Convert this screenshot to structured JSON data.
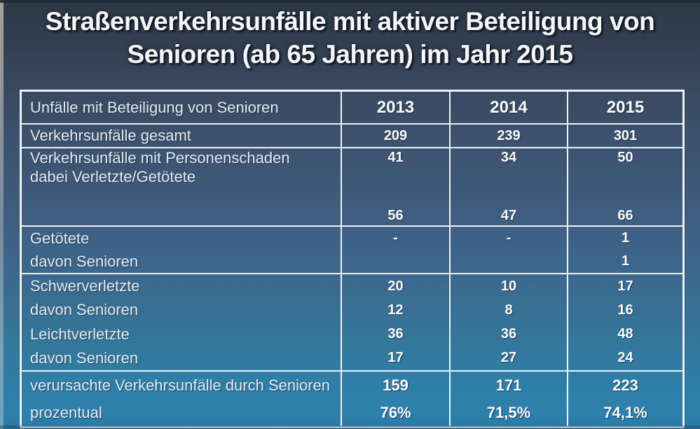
{
  "title": {
    "line1": "Straßenverkehrsunfälle mit aktiver Beteiligung von",
    "line2": "Senioren (ab 65 Jahren) im Jahr 2015"
  },
  "table": {
    "header": {
      "label": "Unfälle mit Beteiligung von Senioren",
      "years": [
        "2013",
        "2014",
        "2015"
      ]
    },
    "blocks": [
      {
        "labels": [
          "Verkehrsunfälle gesamt"
        ],
        "columns": [
          [
            "209"
          ],
          [
            "239"
          ],
          [
            "301"
          ]
        ]
      },
      {
        "labels": [
          "Verkehrsunfälle mit Personenschaden",
          "dabei Verletzte/Getötete",
          "",
          ""
        ],
        "columns": [
          [
            "41",
            "",
            "",
            "56"
          ],
          [
            "34",
            "",
            "",
            "47"
          ],
          [
            "50",
            "",
            "",
            "66"
          ]
        ]
      },
      {
        "labels": [
          "Getötete",
          "davon Senioren"
        ],
        "columns": [
          [
            "-",
            ""
          ],
          [
            "-",
            ""
          ],
          [
            "1",
            "1"
          ]
        ]
      },
      {
        "labels": [
          "Schwerverletzte",
          "davon Senioren",
          "Leichtverletzte",
          "davon Senioren"
        ],
        "columns": [
          [
            "20",
            "12",
            "36",
            "17"
          ],
          [
            "10",
            "8",
            "36",
            "27"
          ],
          [
            "17",
            "16",
            "48",
            "24"
          ]
        ]
      },
      {
        "labels": [
          "verursachte Verkehrsunfälle durch Senioren",
          "prozentual"
        ],
        "columns": [
          [
            "159",
            "76%"
          ],
          [
            "171",
            "71,5%"
          ],
          [
            "223",
            "74,1%"
          ]
        ]
      }
    ]
  },
  "colors": {
    "background_top": "#2e3947",
    "background_mid": "#3f5f82",
    "background_bottom": "#2a7aa3",
    "table_border": "#eef3f6",
    "label_text": "#e4ecf3",
    "value_text": "#fbfcfd"
  }
}
